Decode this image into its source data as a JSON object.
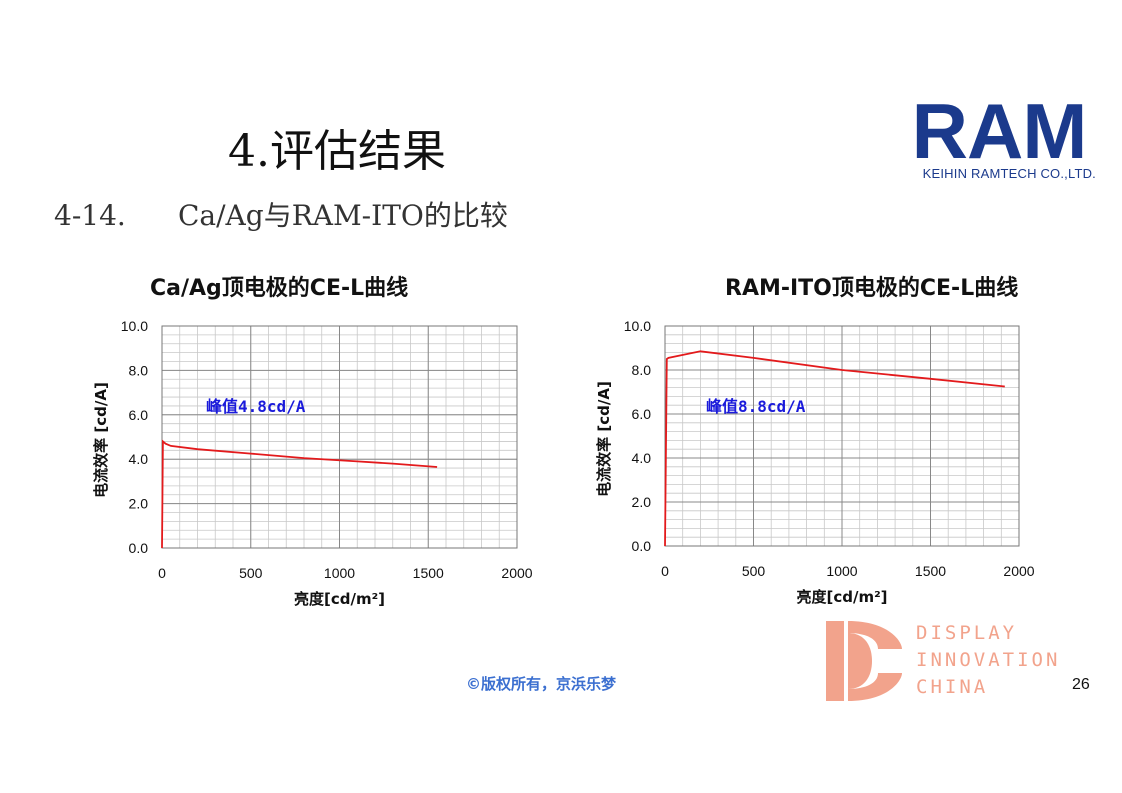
{
  "slide": {
    "title": "4.评估结果",
    "subtitle_number": "4-14.",
    "subtitle_text": "Ca/Ag与RAM-ITO的比较",
    "copyright": "©版权所有，京浜乐梦",
    "page_number": "26"
  },
  "logo": {
    "word": "RAM",
    "company": "KEIHIN RAMTECH CO.,LTD.",
    "color": "#1b3a8c"
  },
  "watermark": {
    "lines": [
      "DISPLAY",
      "INNOVATION",
      "CHINA"
    ],
    "color": "#f2a38c"
  },
  "chart_data": [
    {
      "type": "line",
      "title": "Ca/Ag顶电极的CE-L曲线",
      "xlabel": "亮度[cd/m²]",
      "ylabel": "电流效率 [cd/A]",
      "xlim": [
        0,
        2000
      ],
      "ylim": [
        0,
        10
      ],
      "x_ticks": [
        "0",
        "500",
        "1000",
        "1500",
        "2000"
      ],
      "y_ticks": [
        "0.0",
        "2.0",
        "4.0",
        "6.0",
        "8.0",
        "10.0"
      ],
      "grid": true,
      "line_color": "#e31a1c",
      "annotation": "峰值4.8cd/A",
      "series": [
        {
          "x": [
            0,
            5,
            20,
            50,
            200,
            500,
            800,
            1100,
            1300,
            1550
          ],
          "y": [
            0,
            4.8,
            4.7,
            4.6,
            4.45,
            4.25,
            4.05,
            3.9,
            3.8,
            3.65
          ]
        }
      ]
    },
    {
      "type": "line",
      "title": "RAM-ITO顶电极的CE-L曲线",
      "xlabel": "亮度[cd/m²]",
      "ylabel": "电流效率 [cd/A]",
      "xlim": [
        0,
        2000
      ],
      "ylim": [
        0,
        10
      ],
      "x_ticks": [
        "0",
        "500",
        "1000",
        "1500",
        "2000"
      ],
      "y_ticks": [
        "0.0",
        "2.0",
        "4.0",
        "6.0",
        "8.0",
        "10.0"
      ],
      "grid": true,
      "line_color": "#e31a1c",
      "annotation": "峰值8.8cd/A",
      "series": [
        {
          "x": [
            0,
            10,
            20,
            200,
            500,
            1000,
            1500,
            1920
          ],
          "y": [
            0,
            8.5,
            8.55,
            8.85,
            8.55,
            8.0,
            7.6,
            7.25
          ]
        }
      ]
    }
  ]
}
